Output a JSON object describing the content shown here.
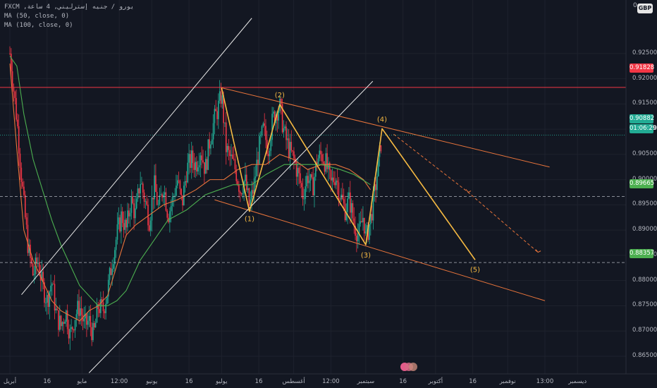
{
  "header": {
    "symbol_line": "FXCM ,يورو / جنيه إسترليني, 4 ساعة",
    "ma1": "MA (50, close, 0)",
    "ma2": "MA (100, close, 0)",
    "currency": "GBP",
    "zero_label": "0"
  },
  "price_tags": {
    "red": "0.91828",
    "cyan": "0.90882",
    "countdown": "01:06:29",
    "green": "0.89665",
    "green2": "0.88357"
  },
  "colors": {
    "background": "#131722",
    "wave": "#f5b942",
    "channel_orange": "#e8743b",
    "channel_white": "#e8e8e8",
    "red_level": "#f23645",
    "cyan_level": "#22ab94",
    "green_level": "#4caf50",
    "ma50": "#e8743b",
    "ma100": "#4caf50"
  },
  "chart_data": {
    "type": "line",
    "title": "",
    "ylim": [
      0.8615,
      0.9356
    ],
    "y_ticks": [
      "0.92500",
      "0.92000",
      "0.91500",
      "0.91000",
      "0.90500",
      "0.90000",
      "0.89500",
      "0.89000",
      "0.88500",
      "0.88000",
      "0.87500",
      "0.87000",
      "0.86500"
    ],
    "x_ticks": [
      "أبريل",
      "16",
      "مايو",
      "12:00",
      "يونيو",
      "16",
      "يوليو",
      "16",
      "أغسطس",
      "12:00",
      "سبتمبر",
      "16",
      "أكتوبر",
      "16",
      "نوفمبر",
      "13:00",
      "ديسمبر"
    ],
    "x_tick_days": [
      0,
      16,
      31,
      47,
      61,
      77,
      91,
      107,
      122,
      138,
      153,
      169,
      183,
      199,
      214,
      230,
      244
    ],
    "horizontal_levels": [
      {
        "value": 0.91828,
        "color": "red",
        "style": "solid"
      },
      {
        "value": 0.90882,
        "color": "cyan",
        "style": "dotted"
      },
      {
        "value": 0.89665,
        "color": "white",
        "style": "dashed"
      },
      {
        "value": 0.88357,
        "color": "white",
        "style": "dashed"
      }
    ],
    "elliott_wave": {
      "points": [
        {
          "label": "",
          "day": 91,
          "price": 0.9182
        },
        {
          "label": "(1)",
          "day": 103,
          "price": 0.8937
        },
        {
          "label": "(2)",
          "day": 116,
          "price": 0.9149
        },
        {
          "label": "(3)",
          "day": 153,
          "price": 0.8871
        },
        {
          "label": "(4)",
          "day": 160,
          "price": 0.9101
        },
        {
          "label": "(5)",
          "day": 200,
          "price": 0.8841
        }
      ]
    },
    "projection_dashed": [
      {
        "day": 165,
        "price": 0.909
      },
      {
        "day": 197,
        "price": 0.8975
      },
      {
        "day": 227,
        "price": 0.8856
      }
    ],
    "channels": [
      {
        "color": "orange",
        "from": {
          "day": 91,
          "price": 0.9182
        },
        "to": {
          "day": 232,
          "price": 0.9025
        }
      },
      {
        "color": "orange",
        "from": {
          "day": 88,
          "price": 0.896
        },
        "to": {
          "day": 230,
          "price": 0.876
        }
      },
      {
        "color": "white",
        "from": {
          "day": 5,
          "price": 0.8772
        },
        "to": {
          "day": 104,
          "price": 0.932
        }
      },
      {
        "color": "white",
        "from": {
          "day": 34,
          "price": 0.8617
        },
        "to": {
          "day": 156,
          "price": 0.9195
        }
      }
    ],
    "series": [
      {
        "values": [
          [
            0,
            0.923
          ],
          [
            3,
            0.906
          ],
          [
            6,
            0.89
          ],
          [
            10,
            0.884
          ],
          [
            14,
            0.88
          ],
          [
            18,
            0.876
          ],
          [
            22,
            0.874
          ],
          [
            26,
            0.873
          ],
          [
            30,
            0.872
          ],
          [
            34,
            0.874
          ],
          [
            38,
            0.875
          ],
          [
            42,
            0.877
          ],
          [
            46,
            0.883
          ],
          [
            50,
            0.889
          ],
          [
            54,
            0.891
          ],
          [
            60,
            0.893
          ],
          [
            66,
            0.895
          ],
          [
            72,
            0.896
          ],
          [
            80,
            0.898
          ],
          [
            86,
            0.9
          ],
          [
            92,
            0.9
          ],
          [
            98,
            0.902
          ],
          [
            104,
            0.903
          ],
          [
            110,
            0.903
          ],
          [
            116,
            0.905
          ],
          [
            122,
            0.904
          ],
          [
            128,
            0.902
          ],
          [
            134,
            0.903
          ],
          [
            140,
            0.903
          ],
          [
            146,
            0.902
          ],
          [
            152,
            0.9
          ],
          [
            155,
            0.898
          ]
        ]
      },
      {
        "values": [
          [
            0,
            0.9245
          ],
          [
            3,
            0.9225
          ],
          [
            6,
            0.913
          ],
          [
            10,
            0.904
          ],
          [
            14,
            0.898
          ],
          [
            18,
            0.892
          ],
          [
            22,
            0.887
          ],
          [
            26,
            0.883
          ],
          [
            30,
            0.879
          ],
          [
            34,
            0.877
          ],
          [
            38,
            0.875
          ],
          [
            42,
            0.875
          ],
          [
            46,
            0.876
          ],
          [
            50,
            0.878
          ],
          [
            56,
            0.884
          ],
          [
            62,
            0.888
          ],
          [
            68,
            0.892
          ],
          [
            76,
            0.894
          ],
          [
            84,
            0.897
          ],
          [
            90,
            0.898
          ],
          [
            96,
            0.899
          ],
          [
            104,
            0.899
          ],
          [
            110,
            0.901
          ],
          [
            118,
            0.903
          ],
          [
            126,
            0.903
          ],
          [
            134,
            0.903
          ],
          [
            142,
            0.902
          ],
          [
            148,
            0.901
          ],
          [
            155,
            0.899
          ]
        ]
      }
    ],
    "price_path": [
      [
        0,
        0.925
      ],
      [
        3,
        0.912
      ],
      [
        6,
        0.895
      ],
      [
        8,
        0.886
      ],
      [
        10,
        0.881
      ],
      [
        12,
        0.884
      ],
      [
        14,
        0.879
      ],
      [
        16,
        0.876
      ],
      [
        18,
        0.88
      ],
      [
        20,
        0.873
      ],
      [
        22,
        0.871
      ],
      [
        24,
        0.874
      ],
      [
        26,
        0.869
      ],
      [
        28,
        0.873
      ],
      [
        30,
        0.875
      ],
      [
        32,
        0.871
      ],
      [
        34,
        0.872
      ],
      [
        36,
        0.869
      ],
      [
        38,
        0.875
      ],
      [
        40,
        0.874
      ],
      [
        42,
        0.878
      ],
      [
        44,
        0.884
      ],
      [
        46,
        0.889
      ],
      [
        48,
        0.893
      ],
      [
        50,
        0.89
      ],
      [
        52,
        0.896
      ],
      [
        54,
        0.893
      ],
      [
        56,
        0.9
      ],
      [
        58,
        0.896
      ],
      [
        60,
        0.892
      ],
      [
        62,
        0.899
      ],
      [
        64,
        0.894
      ],
      [
        66,
        0.899
      ],
      [
        68,
        0.893
      ],
      [
        70,
        0.896
      ],
      [
        72,
        0.9
      ],
      [
        74,
        0.895
      ],
      [
        76,
        0.902
      ],
      [
        78,
        0.904
      ],
      [
        80,
        0.903
      ],
      [
        82,
        0.906
      ],
      [
        84,
        0.902
      ],
      [
        86,
        0.908
      ],
      [
        88,
        0.912
      ],
      [
        90,
        0.915
      ],
      [
        91,
        0.917
      ],
      [
        93,
        0.906
      ],
      [
        95,
        0.904
      ],
      [
        97,
        0.902
      ],
      [
        99,
        0.898
      ],
      [
        101,
        0.9
      ],
      [
        103,
        0.8945
      ],
      [
        105,
        0.899
      ],
      [
        107,
        0.906
      ],
      [
        109,
        0.91
      ],
      [
        111,
        0.906
      ],
      [
        113,
        0.912
      ],
      [
        115,
        0.914
      ],
      [
        116,
        0.9145
      ],
      [
        118,
        0.909
      ],
      [
        120,
        0.906
      ],
      [
        122,
        0.904
      ],
      [
        124,
        0.901
      ],
      [
        126,
        0.897
      ],
      [
        128,
        0.901
      ],
      [
        130,
        0.898
      ],
      [
        132,
        0.904
      ],
      [
        134,
        0.905
      ],
      [
        136,
        0.903
      ],
      [
        138,
        0.899
      ],
      [
        140,
        0.901
      ],
      [
        142,
        0.897
      ],
      [
        144,
        0.894
      ],
      [
        146,
        0.896
      ],
      [
        148,
        0.891
      ],
      [
        150,
        0.889
      ],
      [
        152,
        0.893
      ],
      [
        153,
        0.888
      ],
      [
        155,
        0.892
      ],
      [
        157,
        0.898
      ],
      [
        159,
        0.905
      ],
      [
        160,
        0.9098
      ]
    ]
  }
}
